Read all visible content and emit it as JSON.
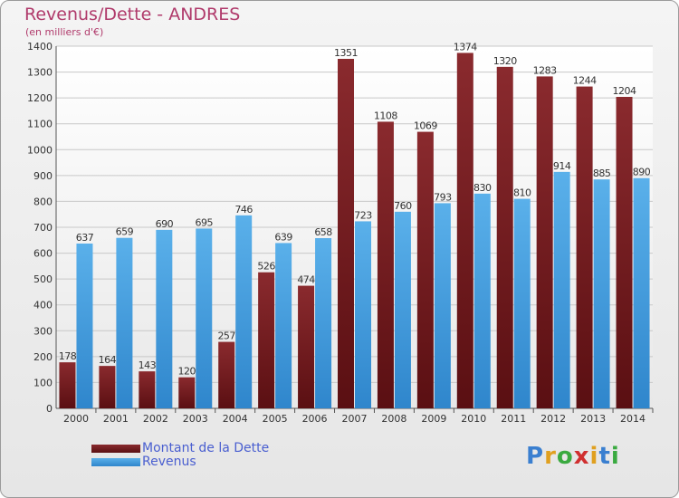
{
  "title": "Revenus/Dette - ANDRES",
  "subtitle": "(en milliers d'€)",
  "logo": "Proxiti",
  "colors": {
    "dette": "#7a1f24",
    "revenus": "#3a95d8",
    "title": "#b03a6b",
    "legend_text": "#4a5fd0"
  },
  "chart_data": {
    "type": "bar",
    "title": "Revenus/Dette - ANDRES",
    "subtitle": "(en milliers d'€)",
    "categories": [
      "2000",
      "2001",
      "2002",
      "2003",
      "2004",
      "2005",
      "2006",
      "2007",
      "2008",
      "2009",
      "2010",
      "2011",
      "2012",
      "2013",
      "2014"
    ],
    "series": [
      {
        "name": "Montant de la Dette",
        "values": [
          178,
          164,
          143,
          120,
          257,
          526,
          474,
          1351,
          1108,
          1069,
          1374,
          1320,
          1283,
          1244,
          1204
        ]
      },
      {
        "name": "Revenus",
        "values": [
          637,
          659,
          690,
          695,
          746,
          639,
          658,
          723,
          760,
          793,
          830,
          810,
          914,
          885,
          890
        ]
      }
    ],
    "ylim": [
      0,
      1400
    ],
    "yticks": [
      0,
      100,
      200,
      300,
      400,
      500,
      600,
      700,
      800,
      900,
      1000,
      1100,
      1200,
      1300,
      1400
    ],
    "grid": true,
    "legend_position": "bottom-left"
  }
}
